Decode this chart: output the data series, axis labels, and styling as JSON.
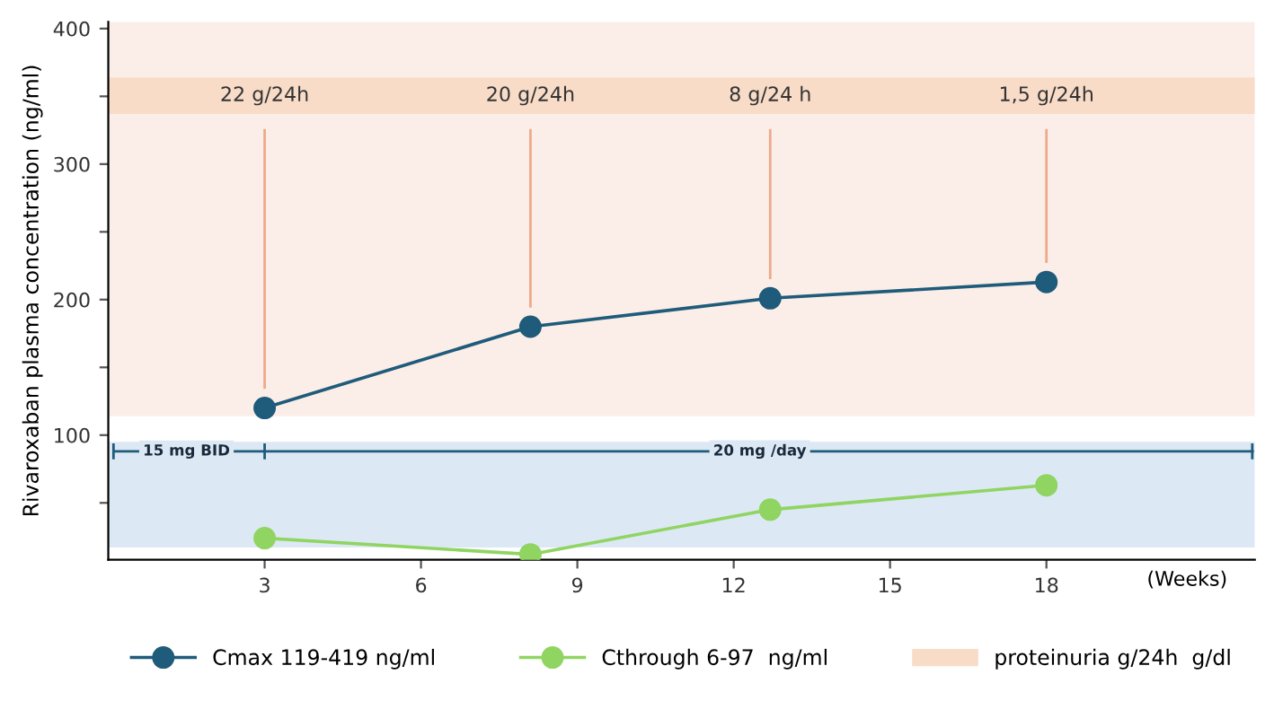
{
  "chart_data": {
    "type": "line",
    "ylabel": "Rivaroxaban plasma concentration (ng/ml)",
    "xlabel": "(Weeks)",
    "xlim": [
      0,
      22
    ],
    "xticks": [
      3,
      6,
      9,
      12,
      15,
      18
    ],
    "ylim": [
      8,
      405
    ],
    "yticks": [
      {
        "value": 50,
        "label": null
      },
      100,
      {
        "value": 150,
        "label": null
      },
      200,
      {
        "value": 250,
        "label": null
      },
      300,
      {
        "value": 350,
        "label": null
      },
      400
    ],
    "marker": "circle",
    "legend": "bottom",
    "grid": false,
    "series": [
      {
        "name": "Cmax 119-419 ng/ml",
        "color": "#1f5b7a",
        "x": [
          3,
          8.1,
          12.7,
          18
        ],
        "values": [
          120,
          180,
          201,
          213
        ]
      },
      {
        "name": "Cthrough 6-97  ng/ml",
        "color": "#90d462",
        "x": [
          3,
          8.1,
          12.7,
          18
        ],
        "values": [
          24,
          12,
          45,
          63
        ]
      }
    ],
    "bands": [
      {
        "axis": "y",
        "from": 114,
        "to": 405,
        "color": "#fbeee8"
      },
      {
        "axis": "y",
        "from": 17,
        "to": 95,
        "color": "#dce9f5"
      },
      {
        "axis": "y",
        "from": 337,
        "to": 364,
        "color": "#f8dcc8",
        "label": "proteinuria g/24h  g/dl"
      }
    ],
    "annotations": [
      "22 g/24h",
      "20 g/24h",
      "8 g/24 h",
      "1,5 g/24h",
      "15 mg BID",
      "20 mg /day"
    ],
    "ref_lines": [
      {
        "axis": "y",
        "value": 88,
        "color": "#1f5b7a"
      }
    ]
  }
}
